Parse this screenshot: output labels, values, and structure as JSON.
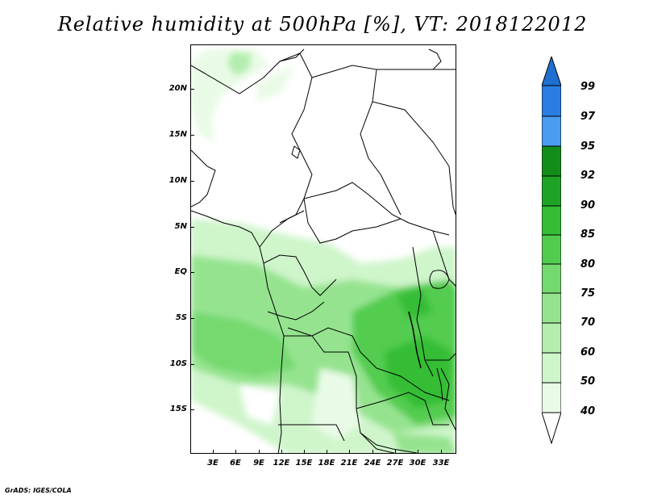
{
  "title": "Relative humidity at 500hPa [%], VT: 2018122012",
  "footer": "GrADS: IGES/COLA",
  "map": {
    "projection": "latlon",
    "lon_range": [
      "0E",
      "34E"
    ],
    "lat_range": [
      "19S",
      "24N"
    ],
    "lat_labels": [
      "20N",
      "15N",
      "10N",
      "5N",
      "EQ",
      "5S",
      "10S",
      "15S"
    ],
    "lon_labels": [
      "3E",
      "6E",
      "9E",
      "12E",
      "15E",
      "18E",
      "21E",
      "24E",
      "27E",
      "30E",
      "33E"
    ]
  },
  "colorbar": {
    "levels": [
      "99",
      "97",
      "95",
      "92",
      "90",
      "85",
      "80",
      "75",
      "70",
      "60",
      "50",
      "40"
    ],
    "colors": {
      "above_99": "#1f6fd0",
      "97_99": "#2a7de1",
      "95_97": "#4a9cf0",
      "92_95": "#138d1a",
      "90_92": "#1fa326",
      "85_90": "#35bd35",
      "80_85": "#52cc4f",
      "75_80": "#74d96f",
      "70_75": "#95e38f",
      "60_70": "#b4edae",
      "50_60": "#cff5cb",
      "40_50": "#e9fbe6",
      "below_40": "#ffffff"
    }
  }
}
